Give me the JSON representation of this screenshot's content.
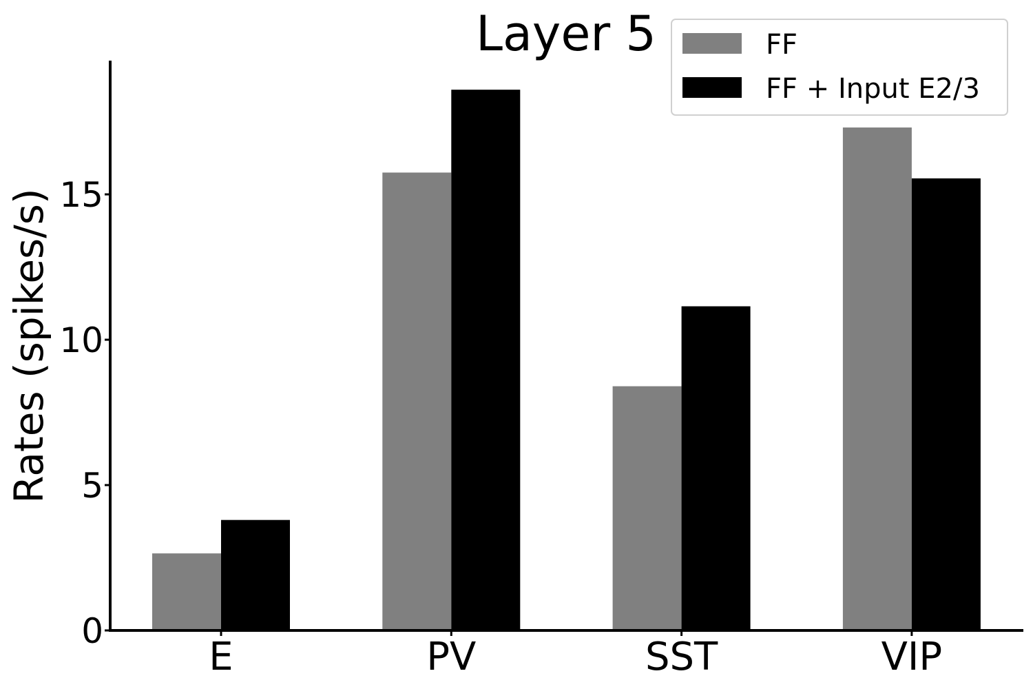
{
  "chart_data": {
    "type": "bar",
    "title": "Layer 5",
    "ylabel": "Rates (spikes/s)",
    "xlabel": "",
    "categories": [
      "E",
      "PV",
      "SST",
      "VIP"
    ],
    "series": [
      {
        "name": "FF",
        "values": [
          2.65,
          15.75,
          8.4,
          17.3
        ],
        "color": "#808080"
      },
      {
        "name": "FF + Input E2/3",
        "values": [
          3.8,
          18.6,
          11.15,
          15.55
        ],
        "color": "#000000"
      }
    ],
    "ylim": [
      0,
      19.6
    ],
    "yticks": [
      0,
      5,
      10,
      15
    ],
    "grid": false,
    "legend_position": "top-right"
  }
}
